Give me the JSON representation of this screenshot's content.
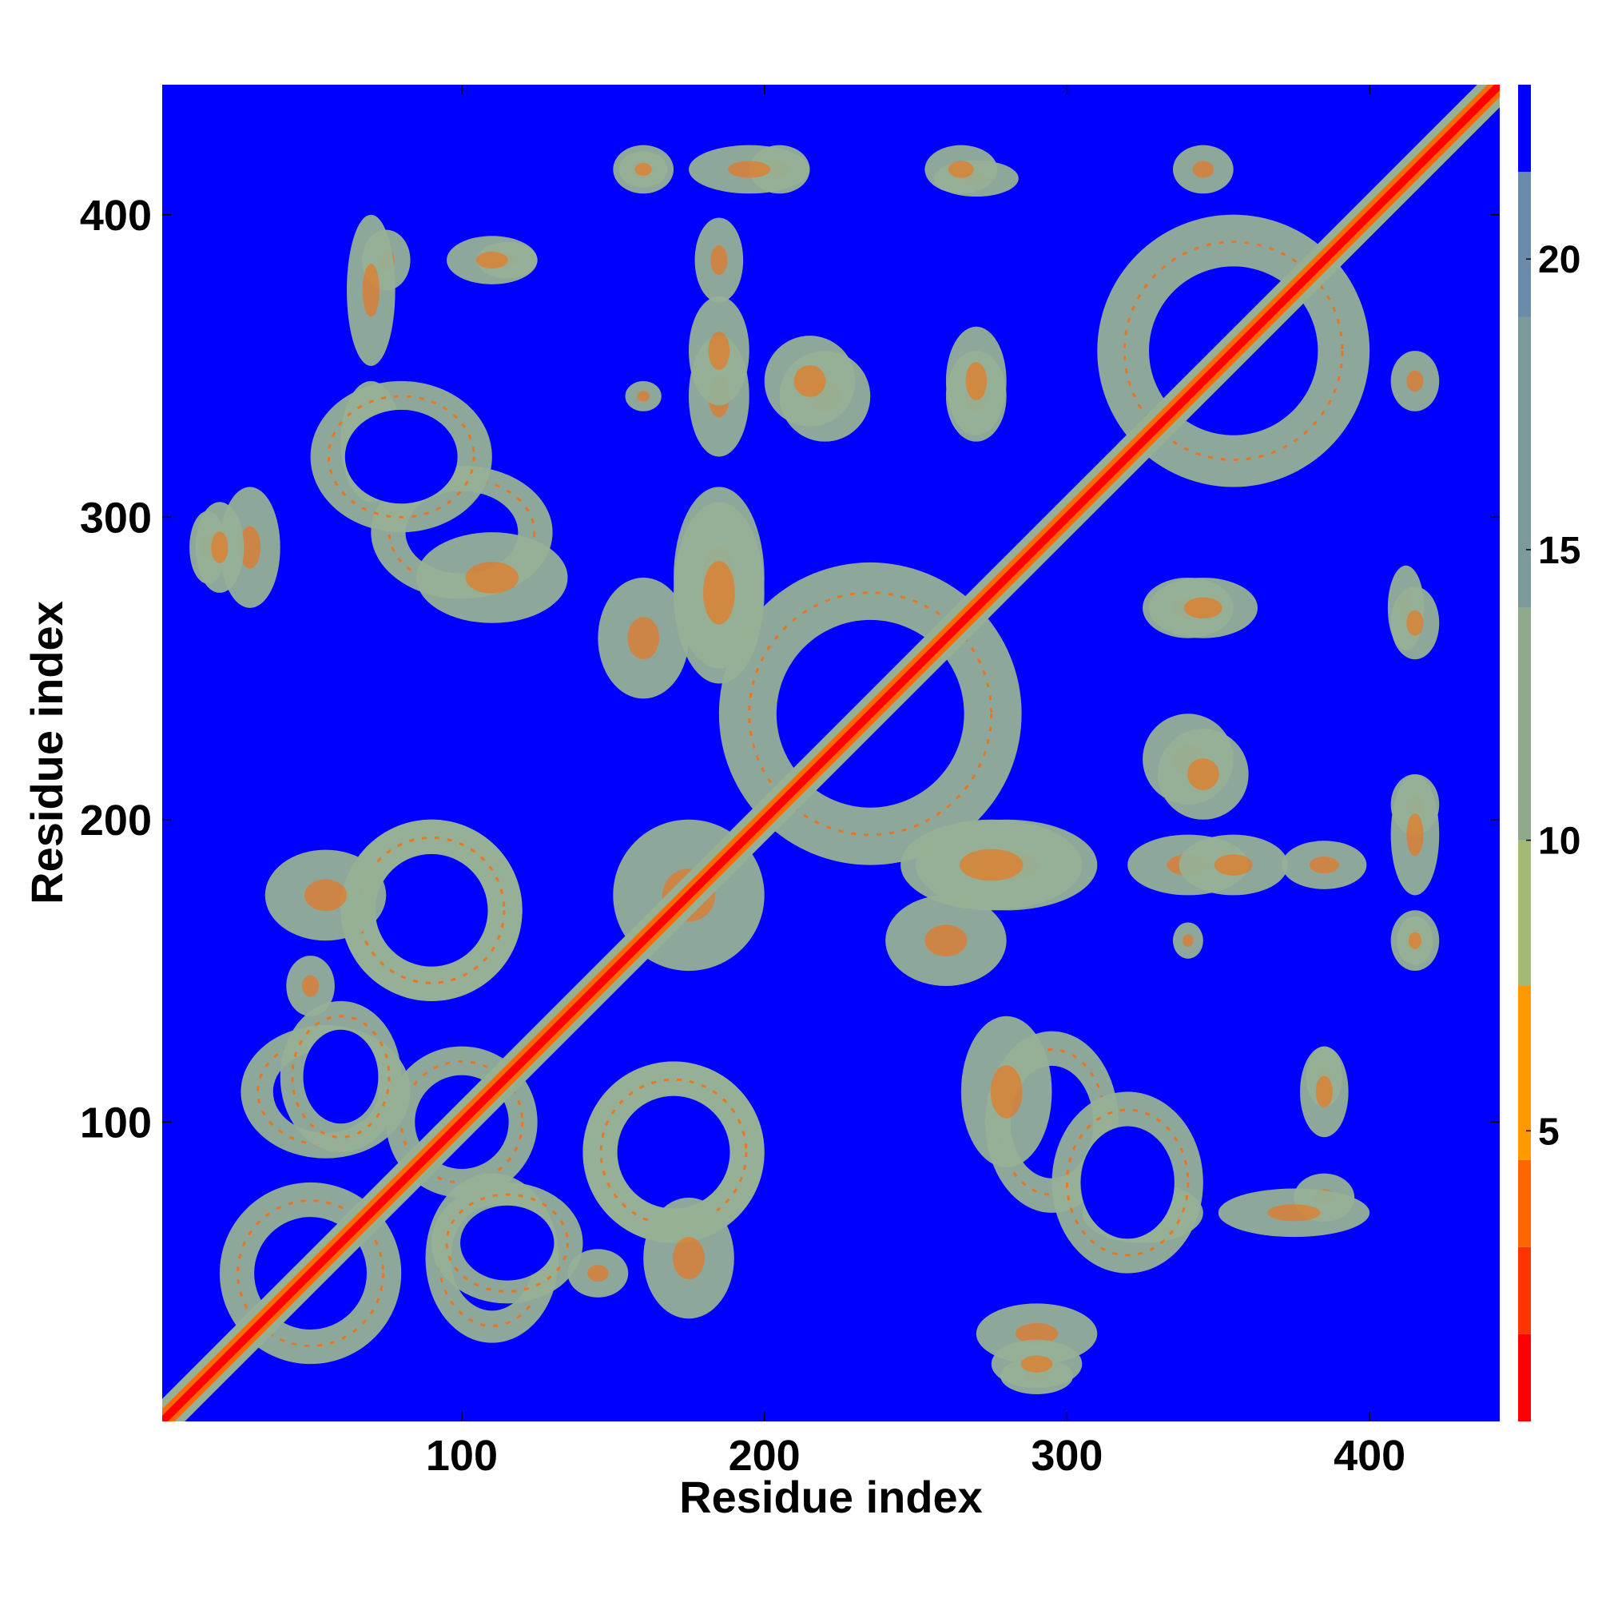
{
  "chart_data": {
    "type": "heatmap",
    "title": "",
    "xlabel": "Residue index",
    "ylabel": "Residue index",
    "xlim": [
      1,
      443
    ],
    "ylim": [
      1,
      443
    ],
    "xticks": [
      100,
      200,
      300,
      400
    ],
    "yticks": [
      100,
      200,
      300,
      400
    ],
    "colorbar": {
      "range": [
        0,
        23
      ],
      "ticks": [
        5,
        10,
        15,
        20
      ],
      "colors": [
        "#ff0000",
        "#ff3300",
        "#ff6600",
        "#ff9900",
        "#a4b878",
        "#8fa98a",
        "#7c9a9a",
        "#6a8caa",
        "#0000ff"
      ]
    },
    "background_color": "#0000ff",
    "diagonal_color": "#ff0000",
    "near_color": "#96b096",
    "contact_color": "#ff6a00",
    "contact_blocks": [
      {
        "i": 50,
        "j": 50,
        "ri": 30,
        "rj": 30,
        "ring": true
      },
      {
        "i": 100,
        "j": 100,
        "ri": 25,
        "rj": 25,
        "ring": true
      },
      {
        "i": 110,
        "j": 55,
        "ri": 22,
        "rj": 28,
        "ring": true
      },
      {
        "i": 60,
        "j": 115,
        "ri": 20,
        "rj": 25,
        "ring": true
      },
      {
        "i": 90,
        "j": 170,
        "ri": 30,
        "rj": 30,
        "ring": true
      },
      {
        "i": 170,
        "j": 90,
        "ri": 30,
        "rj": 30,
        "ring": true
      },
      {
        "i": 175,
        "j": 175,
        "ri": 25,
        "rj": 25,
        "ring": false
      },
      {
        "i": 235,
        "j": 235,
        "ri": 50,
        "rj": 50,
        "ring": true
      },
      {
        "i": 185,
        "j": 280,
        "ri": 15,
        "rj": 30,
        "ring": false
      },
      {
        "i": 275,
        "j": 185,
        "ri": 30,
        "rj": 15,
        "ring": false
      },
      {
        "i": 160,
        "j": 260,
        "ri": 15,
        "rj": 20,
        "ring": false
      },
      {
        "i": 100,
        "j": 295,
        "ri": 30,
        "rj": 22,
        "ring": true
      },
      {
        "i": 70,
        "j": 325,
        "ri": 10,
        "rj": 20,
        "ring": false
      },
      {
        "i": 16,
        "j": 290,
        "ri": 6,
        "rj": 12,
        "ring": false
      },
      {
        "i": 355,
        "j": 355,
        "ri": 45,
        "rj": 45,
        "ring": true
      },
      {
        "i": 320,
        "j": 80,
        "ri": 25,
        "rj": 30,
        "ring": true
      },
      {
        "i": 280,
        "j": 110,
        "ri": 15,
        "rj": 25,
        "ring": false
      },
      {
        "i": 290,
        "j": 30,
        "ri": 20,
        "rj": 10,
        "ring": false
      },
      {
        "i": 270,
        "j": 340,
        "ri": 10,
        "rj": 15,
        "ring": false
      },
      {
        "i": 220,
        "j": 340,
        "ri": 15,
        "rj": 15,
        "ring": false
      },
      {
        "i": 185,
        "j": 340,
        "ri": 10,
        "rj": 20,
        "ring": false
      },
      {
        "i": 160,
        "j": 415,
        "ri": 10,
        "rj": 8,
        "ring": false
      },
      {
        "i": 205,
        "j": 415,
        "ri": 10,
        "rj": 8,
        "ring": false
      },
      {
        "i": 270,
        "j": 412,
        "ri": 14,
        "rj": 6,
        "ring": false
      },
      {
        "i": 75,
        "j": 385,
        "ri": 8,
        "rj": 10,
        "ring": false
      },
      {
        "i": 115,
        "j": 385,
        "ri": 10,
        "rj": 6,
        "ring": false
      },
      {
        "i": 185,
        "j": 385,
        "ri": 8,
        "rj": 14,
        "ring": false
      },
      {
        "i": 345,
        "j": 215,
        "ri": 15,
        "rj": 15,
        "ring": false
      },
      {
        "i": 355,
        "j": 185,
        "ri": 18,
        "rj": 10,
        "ring": false
      },
      {
        "i": 345,
        "j": 270,
        "ri": 18,
        "rj": 10,
        "ring": false
      },
      {
        "i": 385,
        "j": 110,
        "ri": 8,
        "rj": 15,
        "ring": false
      },
      {
        "i": 375,
        "j": 70,
        "ri": 25,
        "rj": 8,
        "ring": false
      },
      {
        "i": 415,
        "j": 195,
        "ri": 8,
        "rj": 20,
        "ring": false
      },
      {
        "i": 415,
        "j": 265,
        "ri": 8,
        "rj": 12,
        "ring": false
      },
      {
        "i": 415,
        "j": 160,
        "ri": 6,
        "rj": 8,
        "ring": false
      },
      {
        "i": 415,
        "j": 345,
        "ri": 8,
        "rj": 10,
        "ring": false
      },
      {
        "i": 340,
        "j": 160,
        "ri": 5,
        "rj": 6,
        "ring": false
      },
      {
        "i": 145,
        "j": 50,
        "ri": 10,
        "rj": 8,
        "ring": false
      },
      {
        "i": 175,
        "j": 55,
        "ri": 15,
        "rj": 20,
        "ring": false
      },
      {
        "i": 290,
        "j": 20,
        "ri": 15,
        "rj": 8,
        "ring": false
      }
    ]
  }
}
